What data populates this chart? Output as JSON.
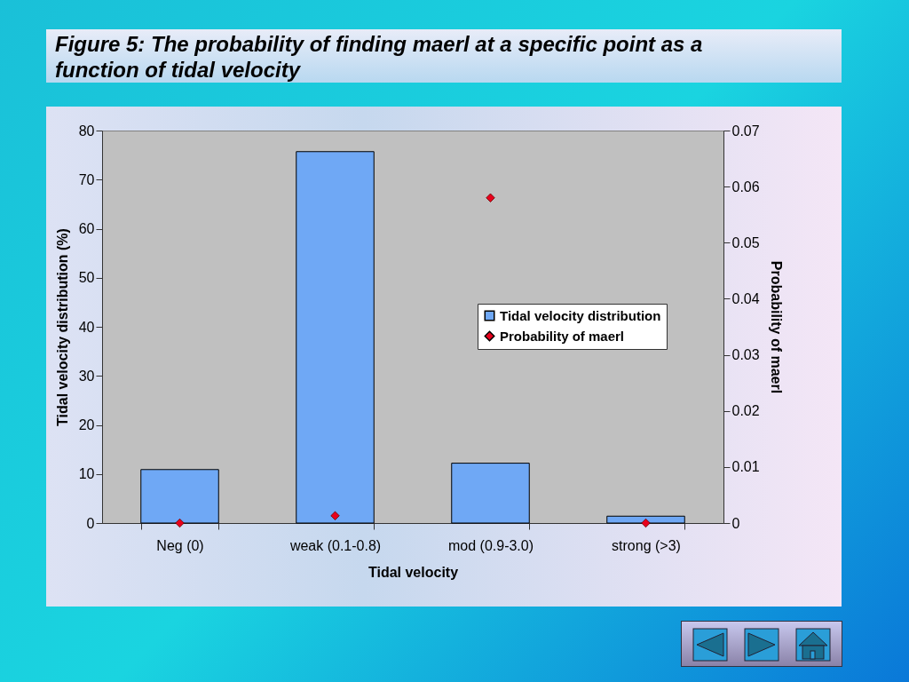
{
  "chart_data": {
    "type": "bar",
    "title": "Figure 5: The probability of finding maerl at a specific point as a function of tidal velocity",
    "xlabel": "Tidal velocity",
    "ylabel": "Tidal velocity distribution (%)",
    "y2label": "Probability of maerl",
    "categories": [
      "Neg (0)",
      "weak (0.1-0.8)",
      "mod (0.9-3.0)",
      "strong (>3)"
    ],
    "series": [
      {
        "name": "Tidal velocity distribution",
        "color": "#6fa8f5",
        "values": [
          10.9,
          75.7,
          12.2,
          1.4
        ]
      },
      {
        "name": "Probability of maerl",
        "type": "scatter",
        "axis": "y2",
        "color": "#e8001c",
        "values": [
          0,
          0.0013,
          0.058,
          0
        ]
      }
    ],
    "ylim": [
      0,
      80
    ],
    "yticks": [
      0,
      10,
      20,
      30,
      40,
      50,
      60,
      70,
      80
    ],
    "y2lim": [
      0,
      0.07
    ],
    "y2ticks": [
      0,
      0.01,
      0.02,
      0.03,
      0.04,
      0.05,
      0.06,
      0.07
    ],
    "marker": "diamond",
    "legend": "right",
    "grid": false
  }
}
